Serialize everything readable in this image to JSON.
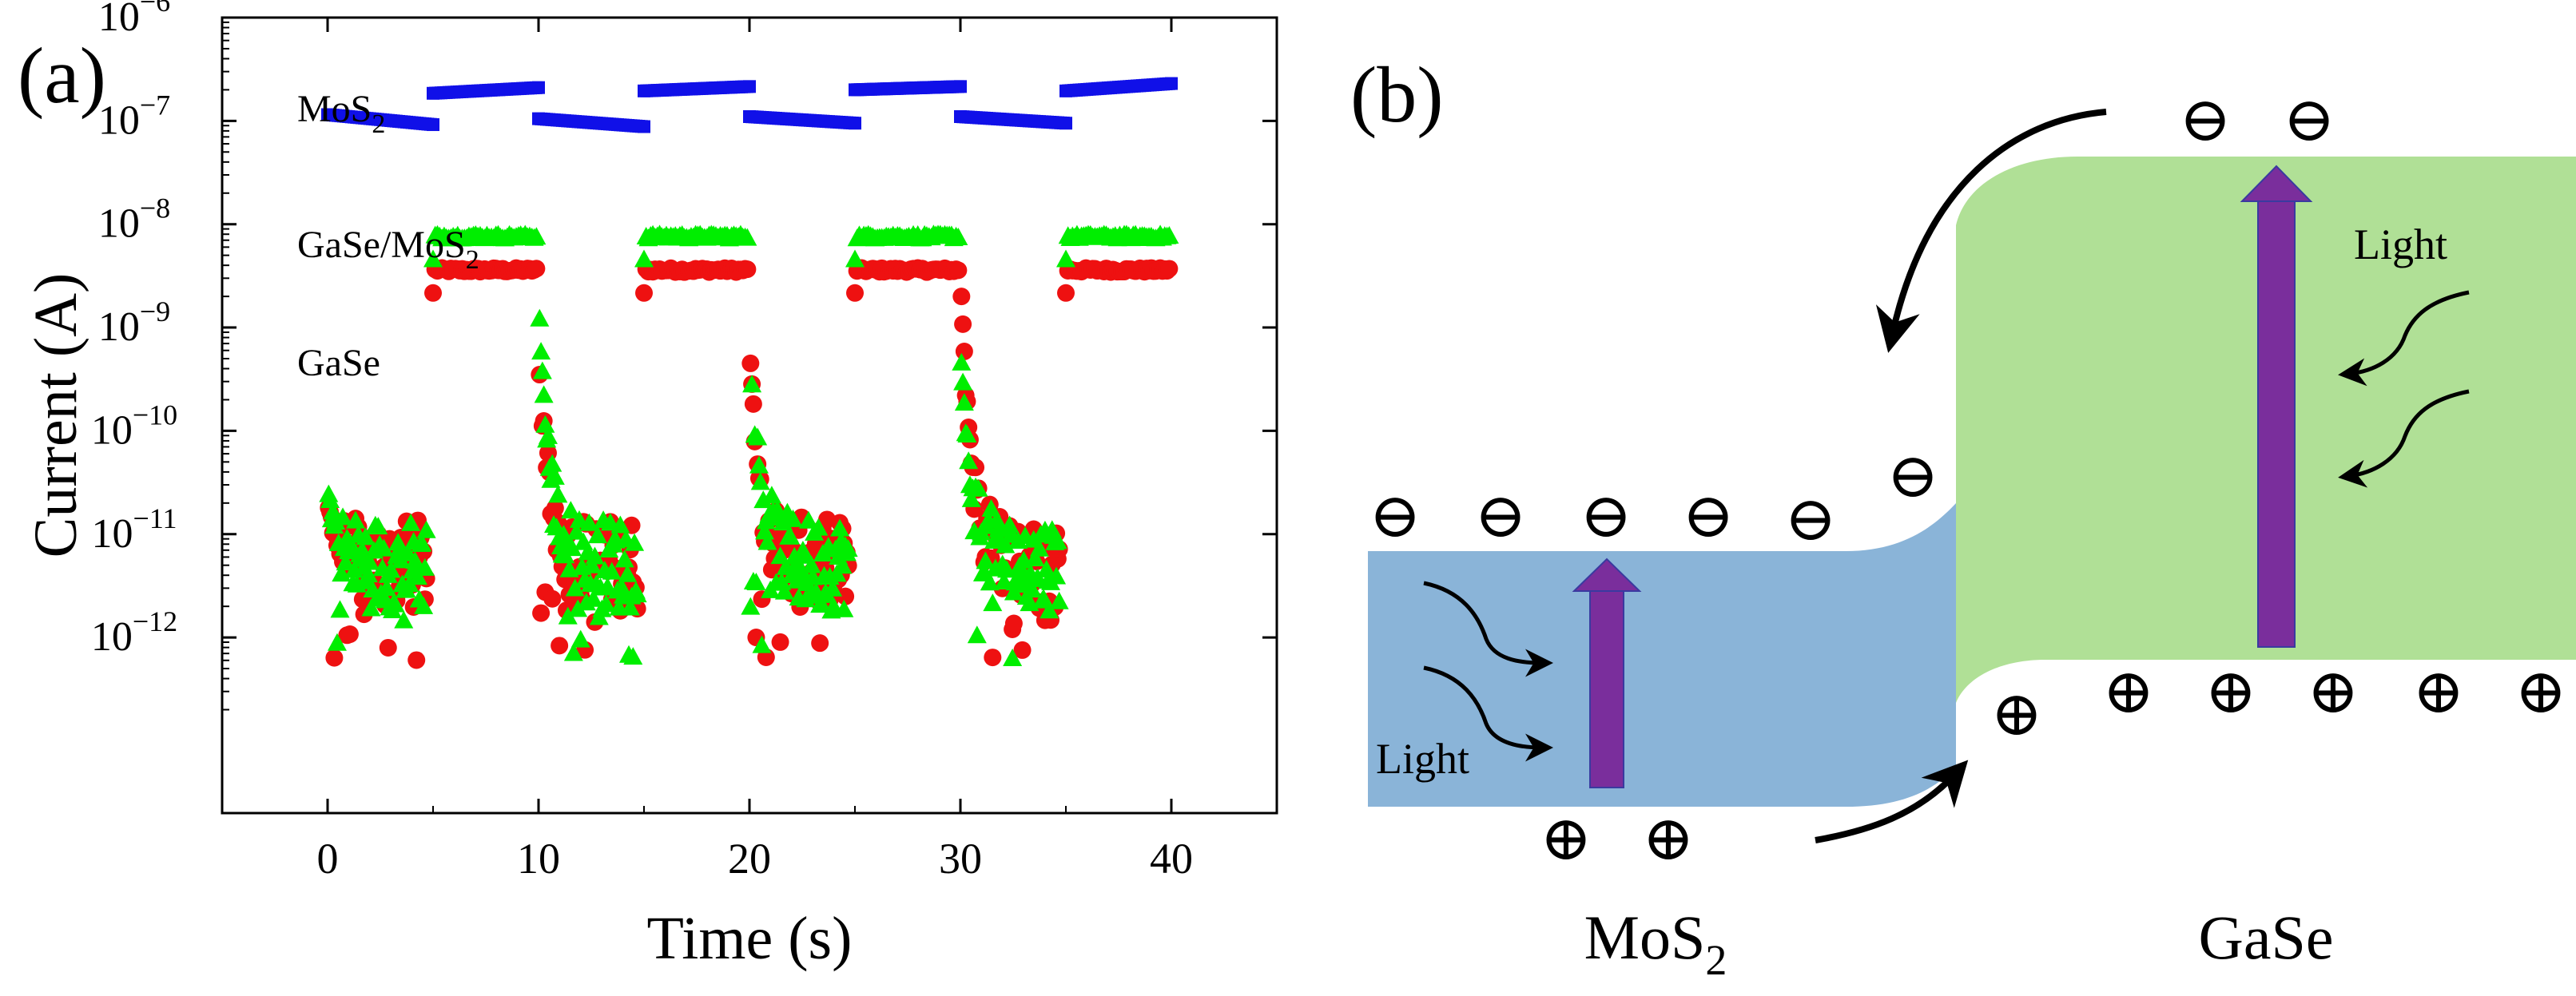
{
  "panels": {
    "a_label": "(a)",
    "b_label": "(b)"
  },
  "chart_data": {
    "type": "scatter",
    "xlabel": "Time (s)",
    "ylabel": "Current (A)",
    "xlim": [
      -5,
      45
    ],
    "ylim_log10": [
      -13.7,
      -6
    ],
    "yscale": "log",
    "x_ticks": [
      0,
      10,
      20,
      30,
      40
    ],
    "y_ticks": [
      {
        "base": "10",
        "exp": "−6",
        "log": -6
      },
      {
        "base": "10",
        "exp": "−7",
        "log": -7
      },
      {
        "base": "10",
        "exp": "−8",
        "log": -8
      },
      {
        "base": "10",
        "exp": "−9",
        "log": -9
      },
      {
        "base": "10",
        "exp": "−10",
        "log": -10
      },
      {
        "base": "10",
        "exp": "−11",
        "log": -11
      },
      {
        "base": "10",
        "exp": "−12",
        "log": -12
      }
    ],
    "grid": false,
    "series": [
      {
        "name": "MoS2",
        "label_main": "MoS",
        "label_sub": "2",
        "marker": "square",
        "color": "#1010e8",
        "period_s": 10,
        "on_s": 5,
        "on_value": 2e-07,
        "off_value": 1e-07,
        "segments": [
          {
            "t0": 0,
            "t1": 5,
            "v0": 1.15e-07,
            "v1": 9.2e-08
          },
          {
            "t0": 5,
            "t1": 10,
            "v0": 1.85e-07,
            "v1": 2.1e-07
          },
          {
            "t0": 10,
            "t1": 15,
            "v0": 1.05e-07,
            "v1": 8.8e-08
          },
          {
            "t0": 15,
            "t1": 20,
            "v0": 1.95e-07,
            "v1": 2.15e-07
          },
          {
            "t0": 20,
            "t1": 25,
            "v0": 1.1e-07,
            "v1": 9.5e-08
          },
          {
            "t0": 25,
            "t1": 30,
            "v0": 2e-07,
            "v1": 2.15e-07
          },
          {
            "t0": 30,
            "t1": 35,
            "v0": 1.1e-07,
            "v1": 9.5e-08
          },
          {
            "t0": 35,
            "t1": 40,
            "v0": 1.95e-07,
            "v1": 2.3e-07
          }
        ]
      },
      {
        "name": "GaSe/MoS2",
        "label_main": "GaSe/MoS",
        "label_sub": "2",
        "marker": "triangle",
        "color": "#00ee00",
        "on_value": 7.5e-09,
        "off_range": [
          6e-13,
          4e-11
        ],
        "on_windows": [
          [
            5,
            10
          ],
          [
            15,
            20
          ],
          [
            25,
            30
          ],
          [
            35,
            40
          ]
        ],
        "off_windows": [
          [
            0,
            5
          ],
          [
            10,
            15
          ],
          [
            20,
            25
          ],
          [
            30,
            35
          ]
        ],
        "decay_peaks": [
          1.2e-09,
          5.5e-10,
          4.5e-10
        ]
      },
      {
        "name": "GaSe",
        "label_main": "GaSe",
        "label_sub": "",
        "marker": "circle",
        "color": "#ee1111",
        "on_value": 3.6e-09,
        "off_range": [
          5e-13,
          3e-11
        ],
        "on_windows": [
          [
            5,
            10
          ],
          [
            15,
            20
          ],
          [
            25,
            30
          ],
          [
            35,
            40
          ]
        ],
        "off_windows": [
          [
            0,
            5
          ],
          [
            10,
            15
          ],
          [
            20,
            25
          ],
          [
            30,
            35
          ]
        ],
        "decay_peaks": [
          3.5e-10,
          4.5e-10,
          2e-09
        ]
      }
    ]
  },
  "diagram": {
    "left_material_main": "MoS",
    "left_material_sub": "2",
    "right_material": "GaSe",
    "light_left": "Light",
    "light_right": "Light",
    "colors": {
      "mos2_band": "#8ab4d8",
      "gase_band": "#b0e096",
      "excitation_arrow": "#7a2e9c",
      "arrow_outline": "#3a3aa0"
    },
    "electron_symbol": "⊖",
    "hole_symbol": "⊕",
    "electron_count_left": 6,
    "electron_count_right": 2,
    "hole_count_left": 2,
    "hole_count_right": 6
  }
}
